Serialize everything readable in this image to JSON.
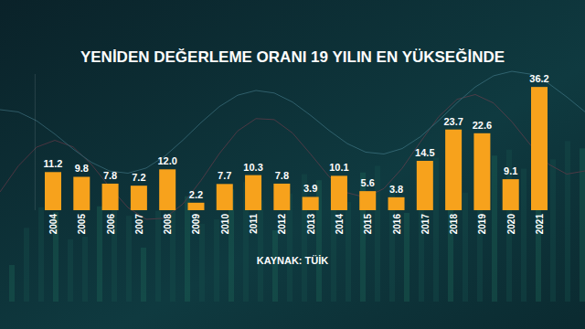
{
  "chart_data": {
    "type": "bar",
    "title": "YENİDEN DEĞERLEME ORANI 19 YILIN EN YÜKSEĞİNDE",
    "source": "KAYNAK: TÜİK",
    "categories": [
      "2004",
      "2005",
      "2006",
      "2007",
      "2008",
      "2009",
      "2010",
      "2011",
      "2012",
      "2013",
      "2014",
      "2015",
      "2016",
      "2017",
      "2018",
      "2019",
      "2020",
      "2021"
    ],
    "values": [
      11.2,
      9.8,
      7.8,
      7.2,
      12.0,
      2.2,
      7.7,
      10.3,
      7.8,
      3.9,
      10.1,
      5.6,
      3.8,
      14.5,
      23.7,
      22.6,
      9.1,
      36.2
    ],
    "value_labels": [
      "11.2",
      "9.8",
      "7.8",
      "7.2",
      "12.0",
      "2.2",
      "7.7",
      "10.3",
      "7.8",
      "3.9",
      "10.1",
      "5.6",
      "3.8",
      "14.5",
      "23.7",
      "22.6",
      "9.1",
      "36.2"
    ],
    "color": "#f7a21c",
    "ylim": [
      0,
      40
    ],
    "grid": false,
    "data_labels": true,
    "tick_labels": "x"
  }
}
